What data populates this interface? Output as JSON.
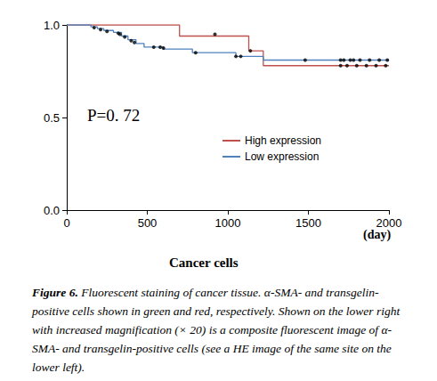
{
  "chart_data": {
    "type": "line",
    "title": "Cancer cells",
    "x_label": "(day)",
    "annotation": "P=0. 72",
    "caption": {
      "label": "Figure 6.",
      "text": "Fluorescent staining of cancer tissue. α-SMA- and transgelin-positive cells shown in green and red, respectively. Shown on the lower right with increased magnification (× 20) is a composite fluorescent image of α-SMA- and transgelin-positive cells (see a HE image of the same site on the lower left)."
    },
    "line_style": "step",
    "legend": "upper right",
    "grid": false,
    "xlim": [
      0,
      2000
    ],
    "xticks": [
      0,
      500,
      1000,
      1500,
      2000
    ],
    "ylim": [
      0,
      1
    ],
    "yticks": [
      {
        "value": 0,
        "label": "0.0"
      },
      {
        "value": 0.5,
        "label": "0.5"
      },
      {
        "value": 1,
        "label": "1.0"
      }
    ],
    "series": [
      {
        "name": "High expression",
        "color": "#c0504d",
        "x": [
          0,
          700,
          1130,
          1220,
          2000
        ],
        "values": [
          1.0,
          0.94,
          0.86,
          0.78,
          0.78
        ],
        "censored_x": [
          920,
          1140,
          1700,
          1740,
          1800,
          1860,
          1920,
          1980
        ],
        "censored_values": [
          0.95,
          0.86,
          0.78,
          0.78,
          0.78,
          0.78,
          0.78,
          0.78
        ]
      },
      {
        "name": "Low expression",
        "color": "#4f81bd",
        "x": [
          0,
          150,
          190,
          230,
          290,
          340,
          380,
          430,
          480,
          600,
          780,
          1050,
          1220,
          2000
        ],
        "values": [
          1.0,
          0.99,
          0.98,
          0.97,
          0.96,
          0.94,
          0.92,
          0.9,
          0.88,
          0.87,
          0.85,
          0.83,
          0.81,
          0.81
        ],
        "censored_x": [
          170,
          210,
          250,
          320,
          330,
          360,
          400,
          420,
          540,
          580,
          600,
          800,
          1050,
          1080,
          1480,
          1700,
          1720,
          1760,
          1780,
          1820,
          1880,
          1940,
          1990
        ],
        "censored_values": [
          0.985,
          0.975,
          0.965,
          0.955,
          0.95,
          0.935,
          0.915,
          0.905,
          0.88,
          0.88,
          0.875,
          0.85,
          0.83,
          0.83,
          0.81,
          0.81,
          0.81,
          0.81,
          0.81,
          0.81,
          0.81,
          0.81,
          0.81
        ]
      }
    ],
    "marker": "dot"
  }
}
